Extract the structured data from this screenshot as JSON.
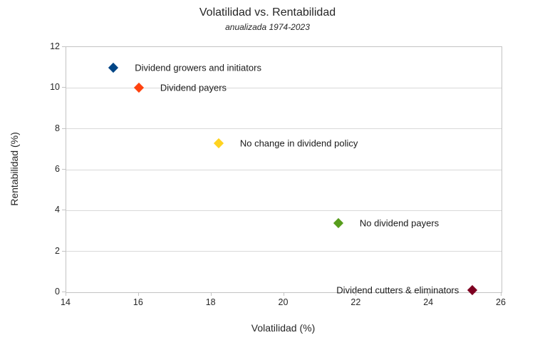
{
  "chart_data": {
    "type": "scatter",
    "title": "Volatilidad vs. Rentabilidad",
    "subtitle": "anualizada 1974-2023",
    "xlabel": "Volatilidad (%)",
    "ylabel": "Rentabilidad (%)",
    "xlim": [
      14,
      26
    ],
    "ylim": [
      0,
      12
    ],
    "x_ticks": [
      14,
      16,
      18,
      20,
      22,
      24,
      26
    ],
    "y_ticks": [
      0,
      2,
      4,
      6,
      8,
      10,
      12
    ],
    "grid": "horizontal-only",
    "legend": "none",
    "marker": "diamond",
    "colors": {
      "gridline": "#d9d9d9",
      "axis": "#c3c3c3",
      "text": "#262626"
    },
    "points": [
      {
        "label": "Dividend growers and initiators",
        "x": 15.3,
        "y": 11.0,
        "color": "#004586",
        "label_side": "right"
      },
      {
        "label": "Dividend payers",
        "x": 16.0,
        "y": 10.0,
        "color": "#FF420E",
        "label_side": "right"
      },
      {
        "label": "No change in dividend policy",
        "x": 18.2,
        "y": 7.3,
        "color": "#FFD320",
        "label_side": "right"
      },
      {
        "label": "No dividend payers",
        "x": 21.5,
        "y": 3.4,
        "color": "#579D1C",
        "label_side": "right"
      },
      {
        "label": "Dividend cutters & eliminators",
        "x": 25.2,
        "y": 0.1,
        "color": "#7E0021",
        "label_side": "left"
      }
    ]
  }
}
